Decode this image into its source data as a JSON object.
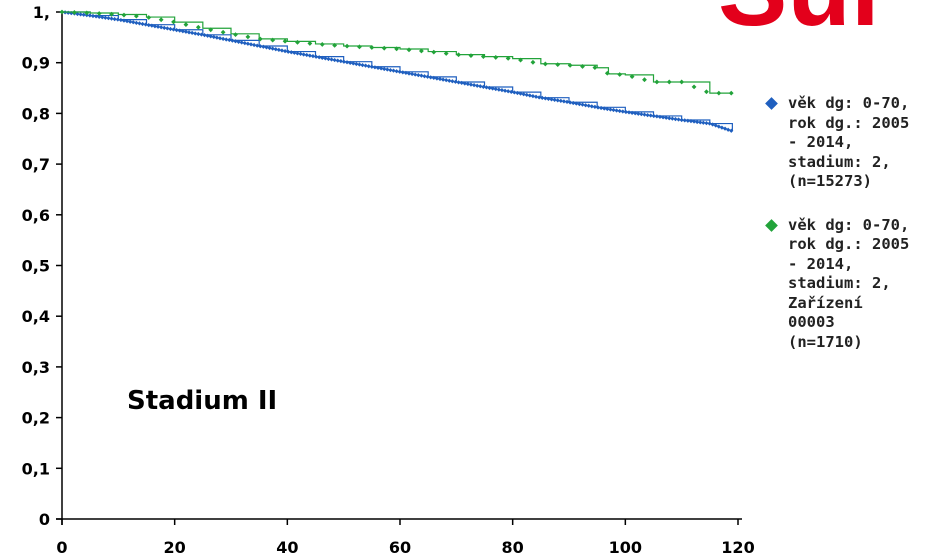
{
  "header": {
    "red_title_fragment": "Sur"
  },
  "annotation": {
    "stage_label": "Stadium II"
  },
  "colors": {
    "series_1": "#1f5fbf",
    "series_2": "#22a33a",
    "title_red": "#e3001b",
    "axis": "#000000"
  },
  "chart_data": {
    "type": "line",
    "title": "",
    "xlabel": "",
    "ylabel": "",
    "xlim": [
      0,
      120
    ],
    "ylim": [
      0,
      1
    ],
    "x_ticks": [
      0,
      20,
      40,
      60,
      80,
      100,
      120
    ],
    "x_tick_labels": [
      "0",
      "20",
      "40",
      "60",
      "80",
      "100",
      "120"
    ],
    "y_ticks": [
      0,
      0.1,
      0.2,
      0.3,
      0.4,
      0.5,
      0.6,
      0.7,
      0.8,
      0.9,
      1
    ],
    "y_tick_labels": [
      "0",
      "0,1",
      "0,2",
      "0,3",
      "0,4",
      "0,5",
      "0,6",
      "0,7",
      "0,8",
      "0,9",
      "1,"
    ],
    "grid": false,
    "legend_position": "right",
    "series": [
      {
        "name": "věk dg: 0-70,\nrok dg.: 2005\n- 2014,\nstadium: 2,\n(n=15273)",
        "color": "#1f5fbf",
        "x": [
          0,
          5,
          10,
          15,
          20,
          25,
          30,
          35,
          40,
          45,
          50,
          55,
          60,
          65,
          70,
          75,
          80,
          85,
          90,
          95,
          100,
          105,
          110,
          115,
          119
        ],
        "y": [
          1.0,
          0.993,
          0.985,
          0.975,
          0.965,
          0.955,
          0.944,
          0.933,
          0.922,
          0.912,
          0.902,
          0.892,
          0.882,
          0.872,
          0.862,
          0.852,
          0.842,
          0.831,
          0.822,
          0.812,
          0.803,
          0.795,
          0.787,
          0.78,
          0.765
        ]
      },
      {
        "name": "věk dg: 0-70,\nrok dg.: 2005\n- 2014,\nstadium: 2,\nZařízení\n00003\n(n=1710)",
        "color": "#22a33a",
        "x": [
          0,
          5,
          10,
          15,
          20,
          25,
          30,
          35,
          40,
          45,
          50,
          55,
          60,
          65,
          70,
          75,
          80,
          85,
          90,
          95,
          97,
          100,
          105,
          110,
          115,
          119
        ],
        "y": [
          1.0,
          0.998,
          0.995,
          0.99,
          0.98,
          0.968,
          0.957,
          0.947,
          0.942,
          0.937,
          0.933,
          0.93,
          0.927,
          0.922,
          0.916,
          0.912,
          0.908,
          0.898,
          0.895,
          0.89,
          0.878,
          0.876,
          0.862,
          0.862,
          0.84,
          0.84
        ]
      }
    ]
  }
}
